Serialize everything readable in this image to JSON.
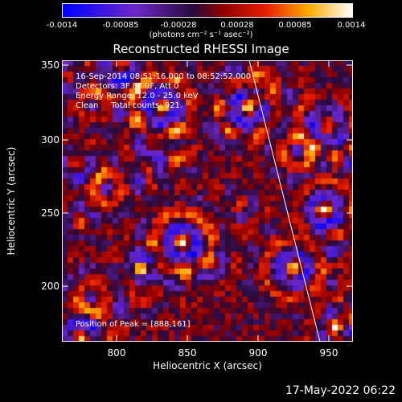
{
  "colorbar": {
    "ticks": [
      "-0.0014",
      "-0.00085",
      "-0.00028",
      "0.00028",
      "0.00085",
      "0.0014"
    ],
    "units": "(photons cm⁻² s⁻¹ asec⁻²)"
  },
  "title": "Reconstructed RHESSI Image",
  "info": {
    "time": "16-Sep-2014 08:51:16.000 to 08:52:52.000",
    "detectors": "Detectors: 3F 8F 9F, Att 0",
    "energy": "Energy Range: 12.0 - 25.0 keV",
    "clean": "Clean     Total counts: 921.",
    "peak": "Position of Peak = [888,161]"
  },
  "axes": {
    "xlabel": "Heliocentric X (arcsec)",
    "ylabel": "Heliocentric Y (arcsec)",
    "xticks": [
      "800",
      "850",
      "900",
      "950"
    ],
    "yticks": [
      "350",
      "300",
      "250",
      "200"
    ],
    "xrange": [
      763,
      963
    ],
    "yrange": [
      160,
      356
    ]
  },
  "timestamp": "17-May-2022 06:22",
  "colors": {
    "background": "#000000",
    "foreground": "#ffffff"
  }
}
